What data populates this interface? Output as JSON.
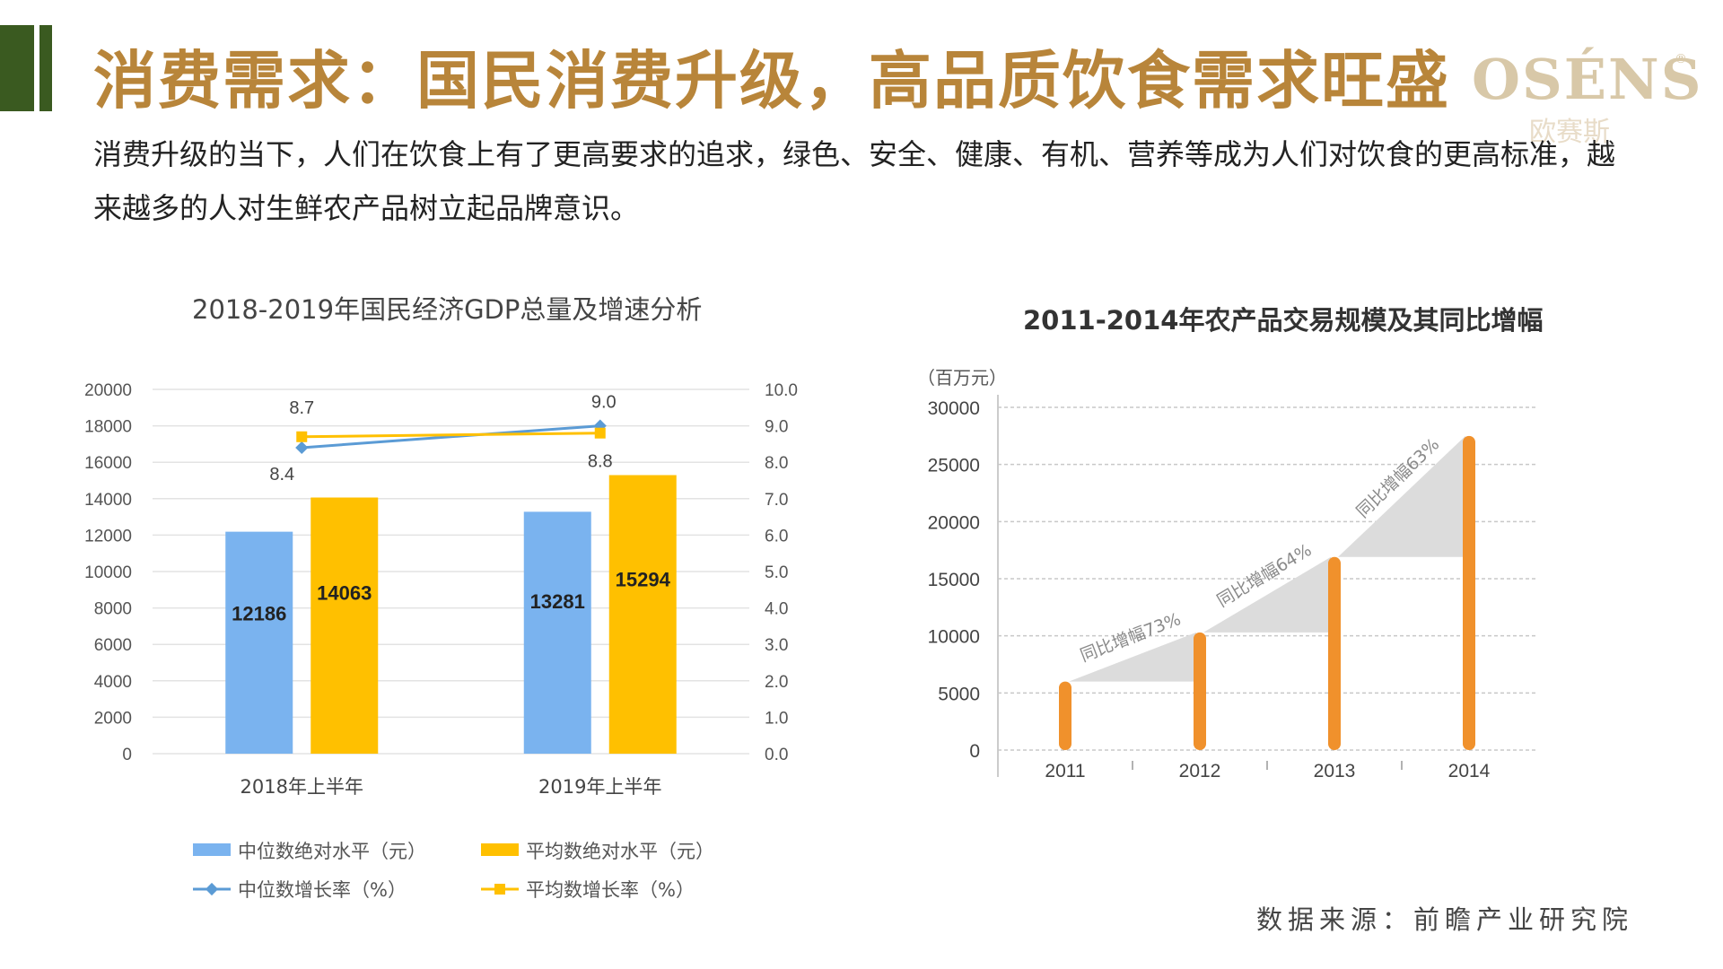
{
  "page": {
    "title": "消费需求：国民消费升级，高品质饮食需求旺盛",
    "subtitle": "消费升级的当下，人们在饮食上有了更高要求的追求，绿色、安全、健康、有机、营养等成为人们对饮食的更高标准，越来越多的人对生鲜农产品树立起品牌意识。",
    "logo_text": "OSÉNS",
    "logo_mark": "®",
    "logo_cn": "欧赛斯",
    "source": "数据来源：前瞻产业研究院",
    "accent_color": "#b8853a",
    "bar_color": "#3a5a20"
  },
  "chart_data": [
    {
      "type": "bar",
      "title": "2018-2019年国民经济GDP总量及增速分析",
      "categories": [
        "2018年上半年",
        "2019年上半年"
      ],
      "series": [
        {
          "name": "中位数绝对水平（元）",
          "kind": "bar",
          "axis": "left",
          "values": [
            12186,
            13281
          ],
          "color": "#7ab3ef"
        },
        {
          "name": "平均数绝对水平（元）",
          "kind": "bar",
          "axis": "left",
          "values": [
            14063,
            15294
          ],
          "color": "#ffc000"
        },
        {
          "name": "中位数增长率（%）",
          "kind": "line",
          "axis": "right",
          "values": [
            8.4,
            9.0
          ],
          "color": "#5b9bd5"
        },
        {
          "name": "平均数增长率（%）",
          "kind": "line",
          "axis": "right",
          "values": [
            8.7,
            8.8
          ],
          "color": "#ffc000"
        }
      ],
      "ylim": [
        0,
        20000
      ],
      "yticks": [
        0,
        2000,
        4000,
        6000,
        8000,
        10000,
        12000,
        14000,
        16000,
        18000,
        20000
      ],
      "y2lim": [
        0,
        10
      ],
      "y2ticks": [
        "0.0",
        "1.0",
        "2.0",
        "3.0",
        "4.0",
        "5.0",
        "6.0",
        "7.0",
        "8.0",
        "9.0",
        "10.0"
      ],
      "grid": true,
      "legend": "bottom"
    },
    {
      "type": "bar",
      "title": "2011-2014年农产品交易规模及其同比增幅",
      "ylabel": "（百万元）",
      "categories": [
        "2011",
        "2012",
        "2013",
        "2014"
      ],
      "values": [
        6000,
        10300,
        16900,
        27500
      ],
      "color": "#f0912c",
      "ylim": [
        0,
        30000
      ],
      "yticks": [
        0,
        5000,
        10000,
        15000,
        20000,
        25000,
        30000
      ],
      "annotations": [
        "同比增幅73%",
        "同比增幅64%",
        "同比增幅63%"
      ],
      "grid": true
    }
  ]
}
